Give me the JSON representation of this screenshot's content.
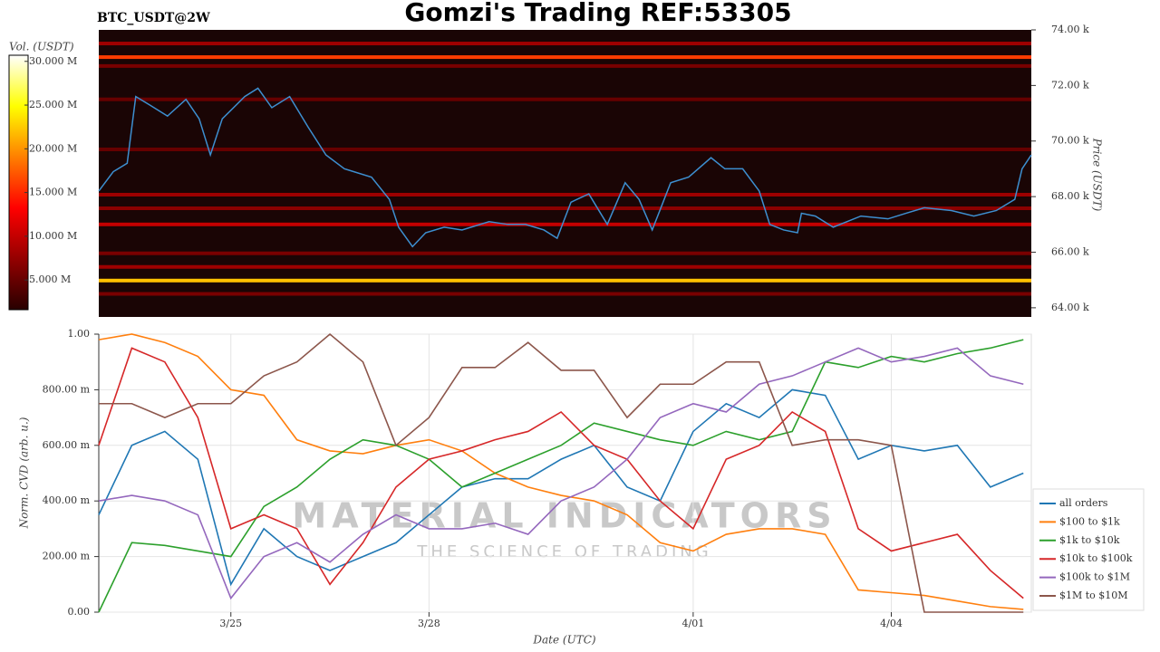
{
  "chart_data": [
    {
      "type": "heatmap",
      "title": "Gomzi's Trading REF:53305",
      "subtitle": "BTC_USDT@2W",
      "ylabel": "Price (USDT)",
      "clabel": "Vol. (USDT)",
      "x": [
        0,
        0.22,
        0.43,
        0.56,
        0.77,
        1.04,
        1.32,
        1.52,
        1.69,
        1.87,
        2.21,
        2.41,
        2.62,
        2.89,
        3.17,
        3.44,
        3.72,
        4.13,
        4.4,
        4.54,
        4.75,
        4.95,
        5.23,
        5.5,
        5.91,
        6.19,
        6.46,
        6.74,
        6.94,
        7.15,
        7.42,
        7.7,
        7.97,
        8.18,
        8.38,
        8.66,
        8.93,
        9.27,
        9.48,
        9.75,
        10.0,
        10.16,
        10.37,
        10.58,
        10.64,
        10.85,
        11.12,
        11.54,
        11.95,
        12.22,
        12.5,
        12.91,
        13.25,
        13.59,
        13.87,
        13.98,
        14.12
      ],
      "series": [
        {
          "color": "#3d8fd0",
          "values": [
            68200,
            68900,
            69200,
            71600,
            71300,
            70900,
            71500,
            70800,
            69500,
            70800,
            71600,
            71900,
            71200,
            71600,
            70500,
            69500,
            69000,
            68700,
            67900,
            66900,
            66200,
            66700,
            66900,
            66800,
            67100,
            67000,
            67000,
            66800,
            66500,
            67800,
            68100,
            67000,
            68500,
            67900,
            66800,
            68500,
            68700,
            69400,
            69000,
            69000,
            68200,
            67000,
            66800,
            66700,
            67400,
            67300,
            66900,
            67300,
            67200,
            67400,
            67600,
            67500,
            67300,
            67500,
            67900,
            69000,
            69500
          ]
        }
      ],
      "levels": [
        73510,
        73020,
        72700,
        71500,
        69700,
        68070,
        67580,
        67000,
        65960,
        65470,
        64980,
        64500
      ],
      "volumes": [
        8000000,
        16000000,
        6000000,
        5000000,
        5000000,
        8000000,
        7000000,
        10000000,
        6000000,
        8000000,
        22000000,
        6000000
      ],
      "xlim": [
        0,
        14.12
      ],
      "ylim": [
        63670,
        74000
      ],
      "yticks": [
        {
          "value": 64000,
          "label": "64.00 k"
        },
        {
          "value": 66000,
          "label": "66.00 k"
        },
        {
          "value": 68000,
          "label": "68.00 k"
        },
        {
          "value": 70000,
          "label": "70.00 k"
        },
        {
          "value": 72000,
          "label": "72.00 k"
        },
        {
          "value": 74000,
          "label": "74.00 k"
        }
      ],
      "clim": [
        1600000,
        30700000
      ],
      "cticks": [
        {
          "value": 5000000,
          "label": "5.000 M"
        },
        {
          "value": 10000000,
          "label": "10.000 M"
        },
        {
          "value": 15000000,
          "label": "15.000 M"
        },
        {
          "value": 20000000,
          "label": "20.000 M"
        },
        {
          "value": 25000000,
          "label": "25.000 M"
        },
        {
          "value": 30000000,
          "label": "30.000 M"
        }
      ]
    },
    {
      "type": "line",
      "xlabel": "Date (UTC)",
      "ylabel": "Norm. CVD (arb. u.)",
      "watermark": {
        "title": "MATERIAL INDICATORS",
        "subtitle": "THE SCIENCE OF TRADING"
      },
      "legend": "right",
      "grid": true,
      "x": [
        0,
        0.5,
        1,
        1.5,
        2,
        2.5,
        3,
        3.5,
        4,
        4.5,
        5,
        5.5,
        6,
        6.5,
        7,
        7.5,
        8,
        8.5,
        9,
        9.5,
        10,
        10.5,
        11,
        11.5,
        12,
        12.5,
        13,
        13.5,
        14
      ],
      "xlim": [
        0,
        14.12
      ],
      "xticks": [
        {
          "value": 2,
          "label": "3/25"
        },
        {
          "value": 5,
          "label": "3/28"
        },
        {
          "value": 9,
          "label": "4/01"
        },
        {
          "value": 12,
          "label": "4/04"
        }
      ],
      "ylim": [
        0,
        1
      ],
      "yticks": [
        {
          "value": 0,
          "label": "0.00"
        },
        {
          "value": 0.2,
          "label": "200.00 m"
        },
        {
          "value": 0.4,
          "label": "400.00 m"
        },
        {
          "value": 0.6,
          "label": "600.00 m"
        },
        {
          "value": 0.8,
          "label": "800.00 m"
        },
        {
          "value": 1,
          "label": "1.00"
        }
      ],
      "series": [
        {
          "name": "all orders",
          "color": "#1f77b4",
          "values": [
            0.35,
            0.6,
            0.65,
            0.55,
            0.1,
            0.3,
            0.2,
            0.15,
            0.2,
            0.25,
            0.35,
            0.45,
            0.48,
            0.48,
            0.55,
            0.6,
            0.45,
            0.4,
            0.65,
            0.75,
            0.7,
            0.8,
            0.78,
            0.55,
            0.6,
            0.58,
            0.6,
            0.45,
            0.5
          ]
        },
        {
          "name": "$100 to $1k",
          "color": "#ff7f0e",
          "values": [
            0.98,
            1.0,
            0.97,
            0.92,
            0.8,
            0.78,
            0.62,
            0.58,
            0.57,
            0.6,
            0.62,
            0.58,
            0.5,
            0.45,
            0.42,
            0.4,
            0.35,
            0.25,
            0.22,
            0.28,
            0.3,
            0.3,
            0.28,
            0.08,
            0.07,
            0.06,
            0.04,
            0.02,
            0.01
          ]
        },
        {
          "name": "$1k to $10k",
          "color": "#2ca02c",
          "values": [
            0.0,
            0.25,
            0.24,
            0.22,
            0.2,
            0.38,
            0.45,
            0.55,
            0.62,
            0.6,
            0.55,
            0.45,
            0.5,
            0.55,
            0.6,
            0.68,
            0.65,
            0.62,
            0.6,
            0.65,
            0.62,
            0.65,
            0.9,
            0.88,
            0.92,
            0.9,
            0.93,
            0.95,
            0.98
          ]
        },
        {
          "name": "$10k to $100k",
          "color": "#d62728",
          "values": [
            0.6,
            0.95,
            0.9,
            0.7,
            0.3,
            0.35,
            0.3,
            0.1,
            0.25,
            0.45,
            0.55,
            0.58,
            0.62,
            0.65,
            0.72,
            0.6,
            0.55,
            0.4,
            0.3,
            0.55,
            0.6,
            0.72,
            0.65,
            0.3,
            0.22,
            0.25,
            0.28,
            0.15,
            0.05
          ]
        },
        {
          "name": "$100k to $1M",
          "color": "#9467bd",
          "values": [
            0.4,
            0.42,
            0.4,
            0.35,
            0.05,
            0.2,
            0.25,
            0.18,
            0.28,
            0.35,
            0.3,
            0.3,
            0.32,
            0.28,
            0.4,
            0.45,
            0.55,
            0.7,
            0.75,
            0.72,
            0.82,
            0.85,
            0.9,
            0.95,
            0.9,
            0.92,
            0.95,
            0.85,
            0.82
          ]
        },
        {
          "name": "$1M to $10M",
          "color": "#8c564b",
          "values": [
            0.75,
            0.75,
            0.7,
            0.75,
            0.75,
            0.85,
            0.9,
            1.0,
            0.9,
            0.6,
            0.7,
            0.88,
            0.88,
            0.97,
            0.87,
            0.87,
            0.7,
            0.82,
            0.82,
            0.9,
            0.9,
            0.6,
            0.62,
            0.62,
            0.6,
            0.0,
            0.0,
            0.0,
            0.0
          ]
        }
      ]
    }
  ]
}
